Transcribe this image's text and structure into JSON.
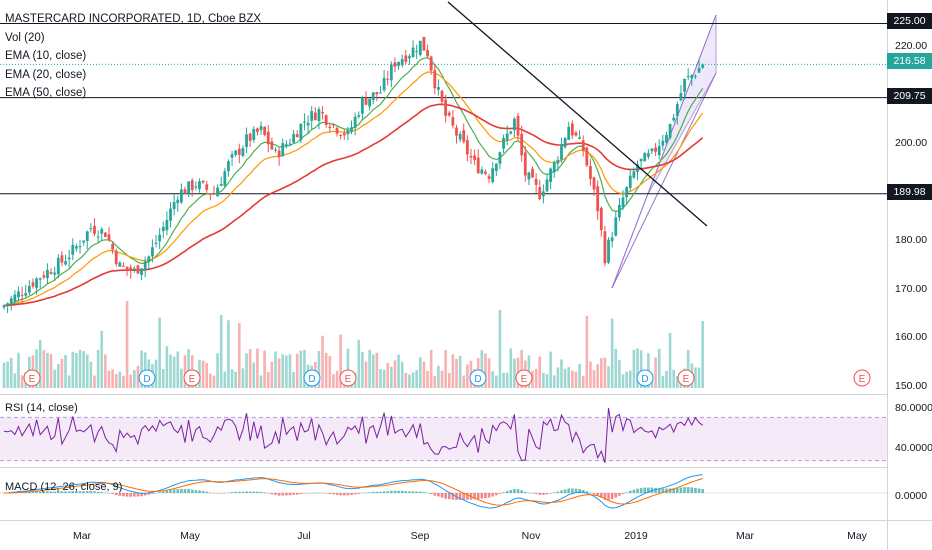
{
  "legend": {
    "title": "MASTERCARD INCORPORATED, 1D, Cboe BZX",
    "vol": "Vol (20)",
    "ema10": "EMA (10, close)",
    "ema20": "EMA (20, close)",
    "ema50": "EMA (50, close)"
  },
  "rsi_label": "RSI (14, close)",
  "macd_label": "MACD (12, 26, close, 9)",
  "price_axis": [
    "220.00",
    "200.00",
    "180.00",
    "170.00",
    "160.00",
    "150.00"
  ],
  "rsi_axis": [
    "80.0000",
    "40.0000"
  ],
  "macd_axis": [
    "0.0000"
  ],
  "price_tags": {
    "resistance_top": "225.00",
    "last": "216.58",
    "resistance_mid": "209.75",
    "support": "189.98"
  },
  "x_labels": [
    "Mar",
    "May",
    "Jul",
    "Sep",
    "Nov",
    "2019",
    "Mar",
    "May"
  ],
  "event_markers": [
    "E",
    "D",
    "E",
    "D",
    "E",
    "D",
    "E",
    "D",
    "E",
    "E"
  ],
  "colors": {
    "up": "#26a69a",
    "down": "#ef5350",
    "ema10": "#4caf50",
    "ema20": "#ff9800",
    "ema50": "#e53935",
    "rsi": "#7b1fa2",
    "rsi_band": "#f3e5f5",
    "channel": "#e1d5f5",
    "macd": "#2196f3",
    "signal": "#ff6d00",
    "hline": "#131722"
  },
  "chart_data": {
    "type": "candlestick",
    "title": "MASTERCARD INCORPORATED, 1D, Cboe BZX",
    "y_axis": {
      "range": [
        150,
        227
      ],
      "ticks": [
        150,
        160,
        170,
        180,
        200,
        220
      ]
    },
    "horizontal_levels": [
      225.0,
      209.75,
      189.98
    ],
    "last_price": 216.58,
    "close_anchors": [
      [
        0,
        167
      ],
      [
        5,
        170
      ],
      [
        10,
        173
      ],
      [
        16,
        176
      ],
      [
        20,
        179
      ],
      [
        24,
        183
      ],
      [
        28,
        182
      ],
      [
        32,
        175
      ],
      [
        36,
        174
      ],
      [
        40,
        177
      ],
      [
        44,
        183
      ],
      [
        48,
        190
      ],
      [
        53,
        192
      ],
      [
        58,
        190
      ],
      [
        62,
        196
      ],
      [
        67,
        201
      ],
      [
        71,
        203
      ],
      [
        75,
        198
      ],
      [
        79,
        201
      ],
      [
        83,
        205
      ],
      [
        87,
        207
      ],
      [
        91,
        204
      ],
      [
        95,
        202
      ],
      [
        99,
        209
      ],
      [
        104,
        211
      ],
      [
        108,
        217
      ],
      [
        112,
        219
      ],
      [
        115,
        221
      ],
      [
        117,
        219
      ],
      [
        119,
        213
      ],
      [
        122,
        206
      ],
      [
        126,
        201
      ],
      [
        130,
        196
      ],
      [
        134,
        194
      ],
      [
        137,
        199
      ],
      [
        141,
        205
      ],
      [
        144,
        194
      ],
      [
        148,
        190
      ],
      [
        152,
        196
      ],
      [
        156,
        204
      ],
      [
        160,
        199
      ],
      [
        164,
        187
      ],
      [
        166,
        177
      ],
      [
        168,
        182
      ],
      [
        171,
        189
      ],
      [
        175,
        196
      ],
      [
        179,
        198
      ],
      [
        184,
        204
      ],
      [
        188,
        213
      ],
      [
        191,
        215
      ],
      [
        193,
        216.58
      ]
    ],
    "rsi": {
      "range": [
        25,
        90
      ],
      "band": [
        30,
        70
      ],
      "ticks": [
        80,
        40
      ]
    },
    "macd": {
      "ticks": [
        0
      ]
    }
  }
}
